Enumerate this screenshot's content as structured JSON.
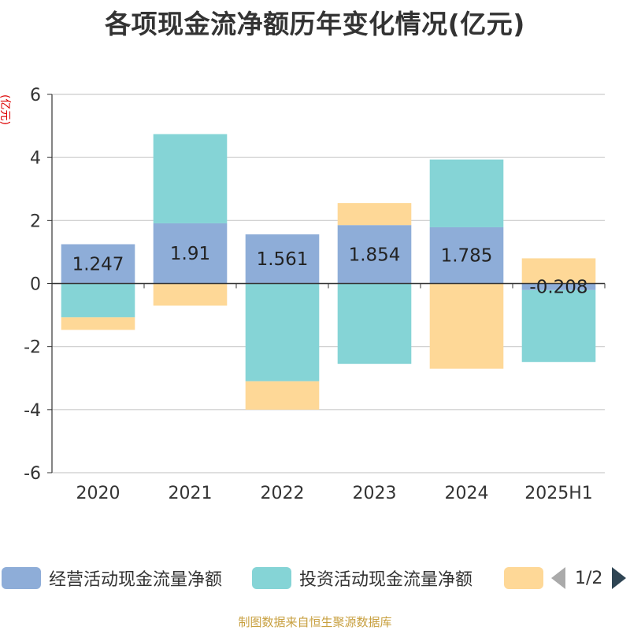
{
  "title": "各项现金流净额历年变化情况(亿元)",
  "source_note": "制图数据来自恒生聚源数据库",
  "legend": {
    "items": [
      {
        "label": "经营活动现金流量净额",
        "color": "#8eadd8"
      },
      {
        "label": "投资活动现金流量净额",
        "color": "#85d4d6"
      },
      {
        "label": "",
        "color": "#fed897"
      }
    ],
    "page": "1/2"
  },
  "chart_data": {
    "type": "bar",
    "stacked": true,
    "title": "各项现金流净额历年变化情况(亿元)",
    "ylabel": "(亿元)",
    "ylim": [
      -6,
      6
    ],
    "yticks": [
      -6,
      -4,
      -2,
      0,
      2,
      4,
      6
    ],
    "grid": true,
    "legend_position": "bottom",
    "categories": [
      "2020",
      "2021",
      "2022",
      "2023",
      "2024",
      "2025H1"
    ],
    "series": [
      {
        "name": "经营活动现金流量净额",
        "color": "#8eadd8",
        "values": [
          1.247,
          1.91,
          1.561,
          1.854,
          1.785,
          -0.208
        ],
        "labels": [
          "1.247",
          "1.91",
          "1.561",
          "1.854",
          "1.785",
          "-0.208"
        ]
      },
      {
        "name": "投资活动现金流量净额",
        "color": "#85d4d6",
        "values": [
          -1.07,
          2.83,
          -3.1,
          -2.55,
          2.15,
          -2.28
        ]
      },
      {
        "name": "",
        "color": "#fed897",
        "values": [
          -0.4,
          -0.7,
          -0.9,
          0.7,
          -2.7,
          0.8
        ]
      }
    ]
  }
}
